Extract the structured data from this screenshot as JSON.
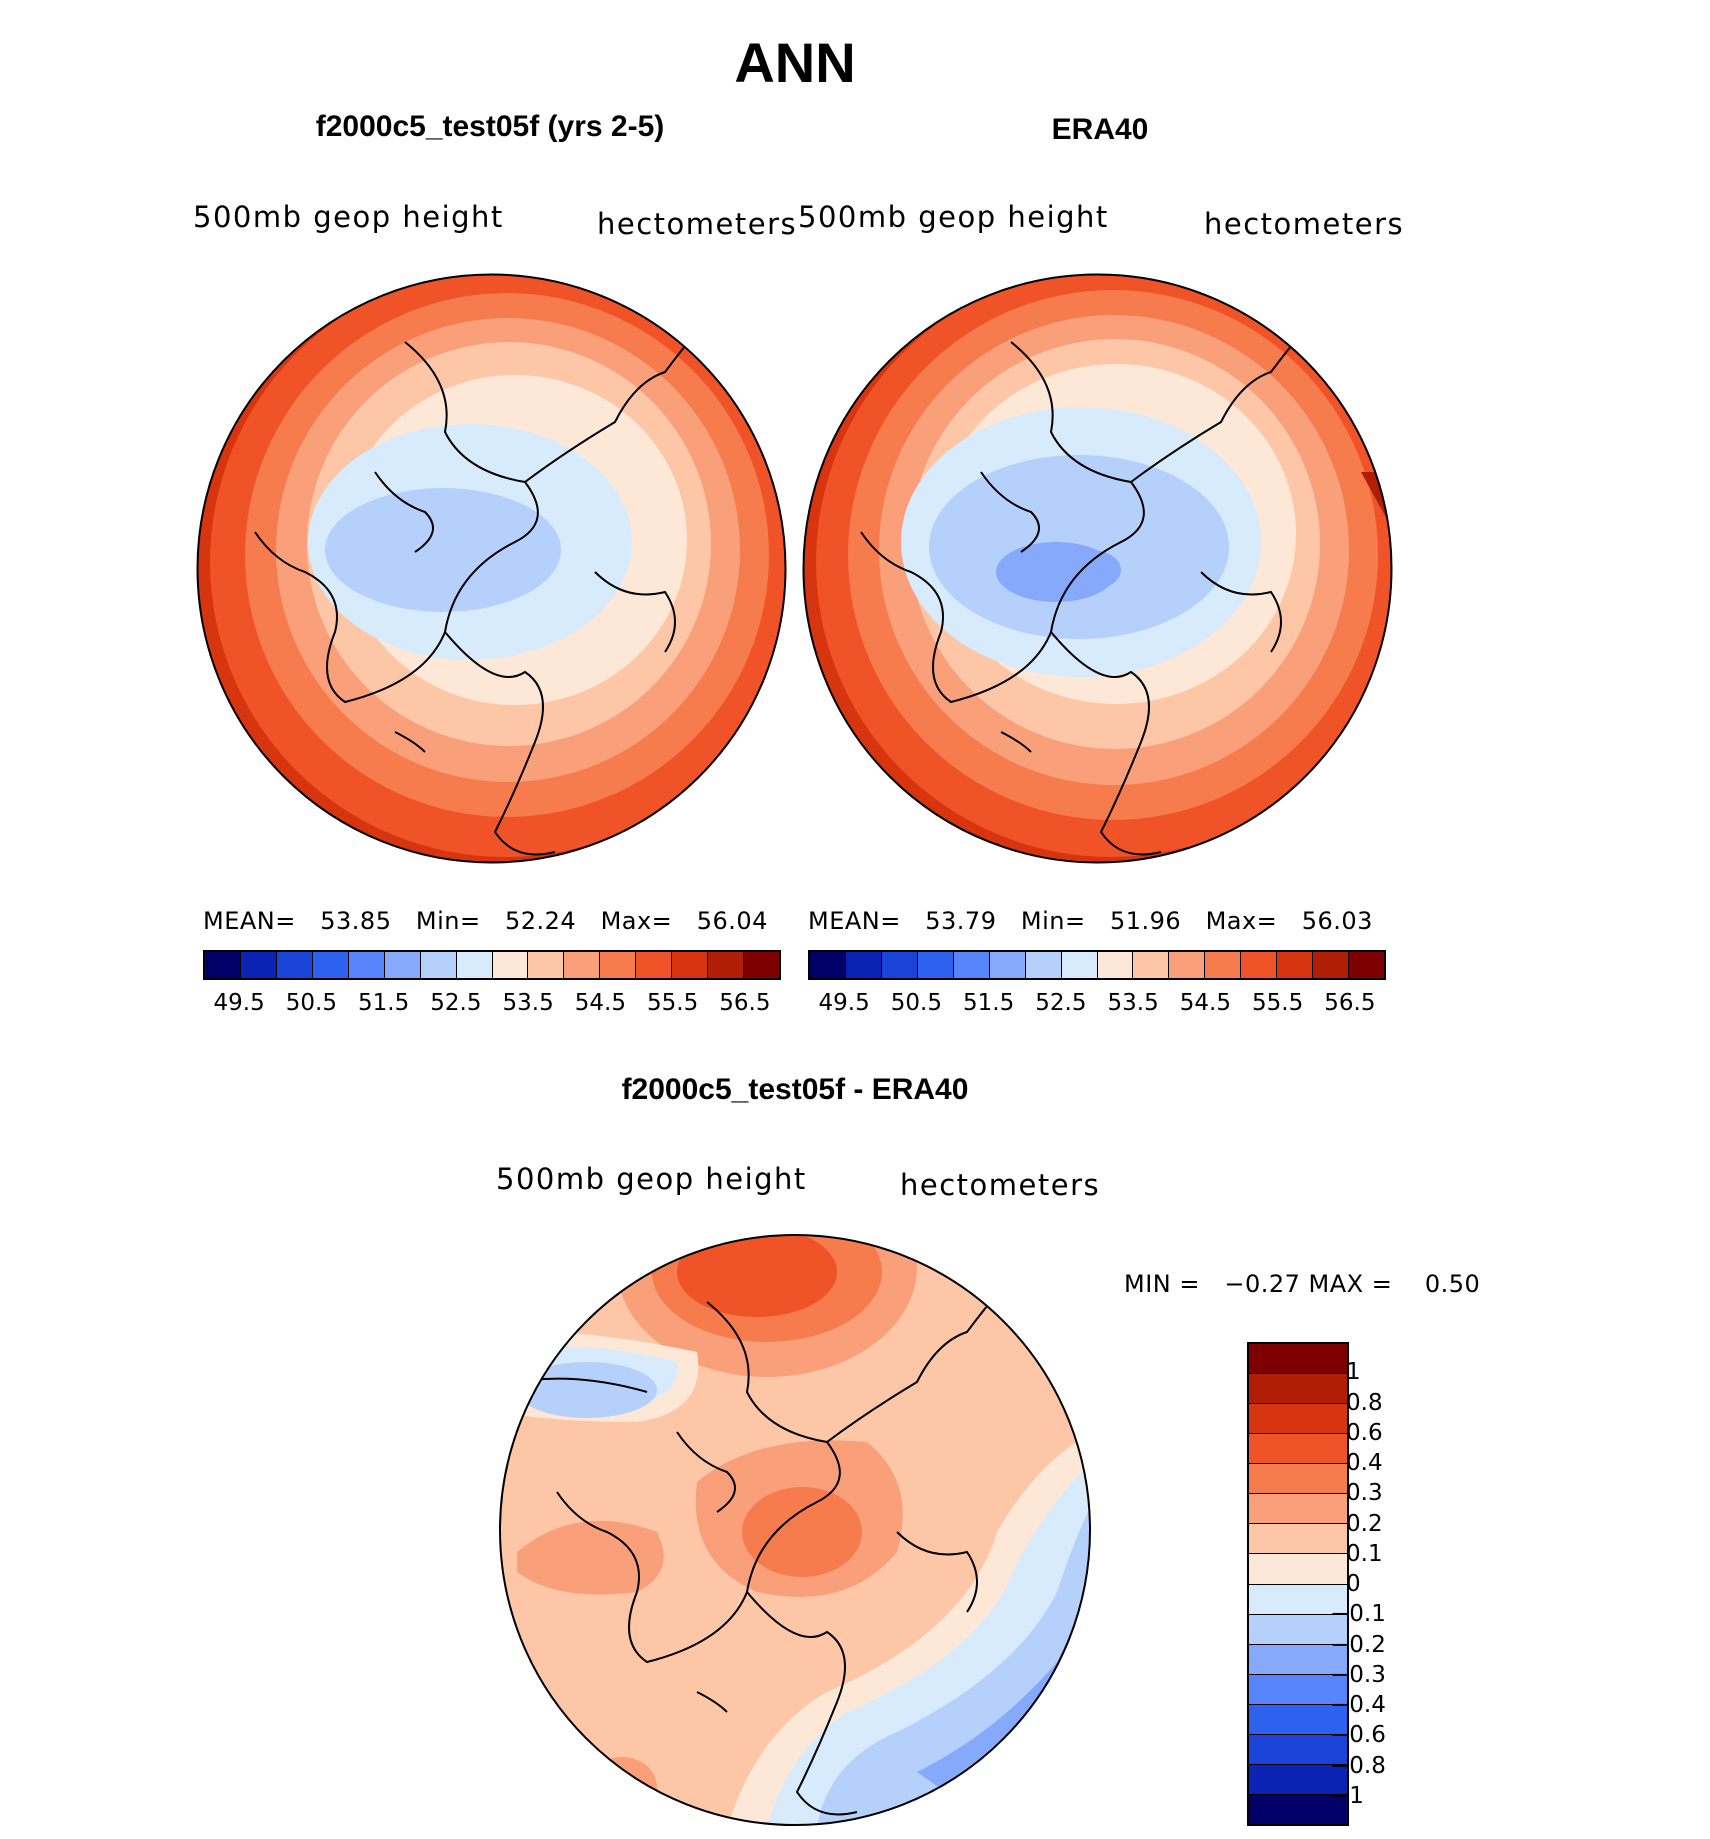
{
  "figure": {
    "title": "ANN",
    "panels": [
      {
        "title": "f2000c5_test05f (yrs 2-5)",
        "variable": "500mb geop height",
        "units": "hectometers",
        "stats": {
          "mean_label": "MEAN=",
          "mean": "53.85",
          "min_label": "Min=",
          "min": "52.24",
          "max_label": "Max=",
          "max": "56.04"
        },
        "colorbar_ticks": [
          "49.5",
          "50.5",
          "51.5",
          "52.5",
          "53.5",
          "54.5",
          "55.5",
          "56.5"
        ]
      },
      {
        "title": "ERA40",
        "variable": "500mb geop height",
        "units": "hectometers",
        "stats": {
          "mean_label": "MEAN=",
          "mean": "53.79",
          "min_label": "Min=",
          "min": "51.96",
          "max_label": "Max=",
          "max": "56.03"
        },
        "colorbar_ticks": [
          "49.5",
          "50.5",
          "51.5",
          "52.5",
          "53.5",
          "54.5",
          "55.5",
          "56.5"
        ]
      }
    ],
    "difference": {
      "title": "f2000c5_test05f - ERA40",
      "variable": "500mb geop height",
      "units": "hectometers",
      "stats_text": "MIN =   −0.27 MAX =    0.50",
      "colorbar_labels": [
        "1",
        "0.8",
        "0.6",
        "0.4",
        "0.3",
        "0.2",
        "0.1",
        "0",
        "−0.1",
        "−0.2",
        "−0.3",
        "−0.4",
        "−0.6",
        "−0.8",
        "−1"
      ]
    }
  },
  "colors": {
    "abs_scale": [
      "#000068",
      "#0a23b4",
      "#1a44d8",
      "#2d62ee",
      "#5585f8",
      "#86a9fc",
      "#b6d0fc",
      "#d8ebfd",
      "#fde8d8",
      "#fcc6a7",
      "#f9a07a",
      "#f67b4d",
      "#ef5327",
      "#d73410",
      "#b01e05",
      "#7e0000"
    ],
    "diff_scale": [
      "#7e0000",
      "#b01e05",
      "#d73410",
      "#ef5327",
      "#f67b4d",
      "#f9a07a",
      "#fcc6a7",
      "#fde8d8",
      "#d8ebfd",
      "#b6d0fc",
      "#86a9fc",
      "#5585f8",
      "#2d62ee",
      "#1a44d8",
      "#0a23b4",
      "#000068"
    ]
  },
  "chart_data": [
    {
      "type": "heatmap",
      "title": "f2000c5_test05f (yrs 2-5)",
      "projection": "north-polar stereographic",
      "variable": "500mb geop height",
      "units": "hectometers",
      "mean": 53.85,
      "min": 52.24,
      "max": 56.04,
      "contour_levels": [
        49.5,
        50,
        50.5,
        51,
        51.5,
        52,
        52.5,
        53,
        53.5,
        54,
        54.5,
        55,
        55.5,
        56,
        56.5
      ]
    },
    {
      "type": "heatmap",
      "title": "ERA40",
      "projection": "north-polar stereographic",
      "variable": "500mb geop height",
      "units": "hectometers",
      "mean": 53.79,
      "min": 51.96,
      "max": 56.03,
      "contour_levels": [
        49.5,
        50,
        50.5,
        51,
        51.5,
        52,
        52.5,
        53,
        53.5,
        54,
        54.5,
        55,
        55.5,
        56,
        56.5
      ]
    },
    {
      "type": "heatmap",
      "title": "f2000c5_test05f - ERA40",
      "projection": "north-polar stereographic",
      "variable": "500mb geop height",
      "units": "hectometers",
      "min": -0.27,
      "max": 0.5,
      "contour_levels": [
        -1,
        -0.8,
        -0.6,
        -0.4,
        -0.3,
        -0.2,
        -0.1,
        0,
        0.1,
        0.2,
        0.3,
        0.4,
        0.6,
        0.8,
        1
      ]
    }
  ]
}
